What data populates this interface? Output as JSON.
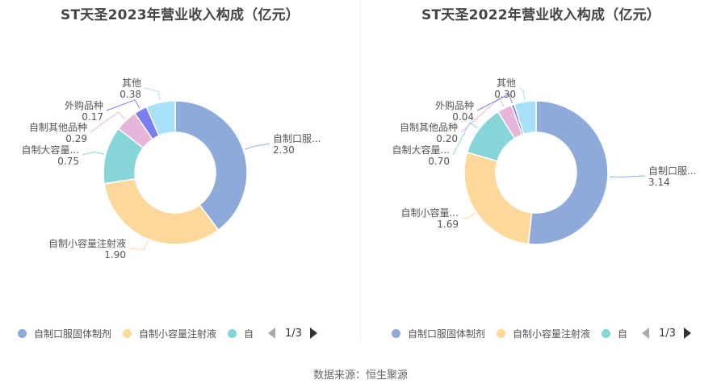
{
  "chart_data": [
    {
      "type": "pie",
      "title": "ST天圣2023年营业收入构成（亿元）",
      "categories": [
        "自制口服固体制剂",
        "自制小容量注射液",
        "自制大容量注射液",
        "自制其他品种",
        "外购品种",
        "其他"
      ],
      "labels": [
        "自制口服...",
        "自制小容量注射液",
        "自制大容量...",
        "自制其他品种",
        "外购品种",
        "其他"
      ],
      "values": [
        2.3,
        1.9,
        0.75,
        0.29,
        0.17,
        0.38
      ],
      "value_labels": [
        "2.30",
        "1.90",
        "0.75",
        "0.29",
        "0.17",
        "0.38"
      ],
      "colors": [
        "#8eaadb",
        "#fdd89a",
        "#86d6d9",
        "#e5b6da",
        "#7b7fed",
        "#a7e0f9"
      ],
      "legend": {
        "items": [
          "自制口服固体制剂",
          "自制小容量注射液",
          "自"
        ],
        "page": "1/3",
        "placement": "bottom"
      }
    },
    {
      "type": "pie",
      "title": "ST天圣2022年营业收入构成（亿元）",
      "categories": [
        "自制口服固体制剂",
        "自制小容量注射液",
        "自制大容量注射液",
        "自制其他品种",
        "外购品种",
        "其他"
      ],
      "labels": [
        "自制口服...",
        "自制小容量...",
        "自制大容量...",
        "自制其他品种",
        "外购品种",
        "其他"
      ],
      "values": [
        3.14,
        1.69,
        0.7,
        0.2,
        0.04,
        0.3
      ],
      "value_labels": [
        "3.14",
        "1.69",
        "0.70",
        "0.20",
        "0.04",
        "0.30"
      ],
      "colors": [
        "#8eaadb",
        "#fdd89a",
        "#86d6d9",
        "#e5b6da",
        "#7b7fed",
        "#a7e0f9"
      ],
      "legend": {
        "items": [
          "自制口服固体制剂",
          "自制小容量注射液",
          "自"
        ],
        "page": "1/3",
        "placement": "bottom"
      }
    }
  ],
  "source": "数据来源：恒生聚源"
}
